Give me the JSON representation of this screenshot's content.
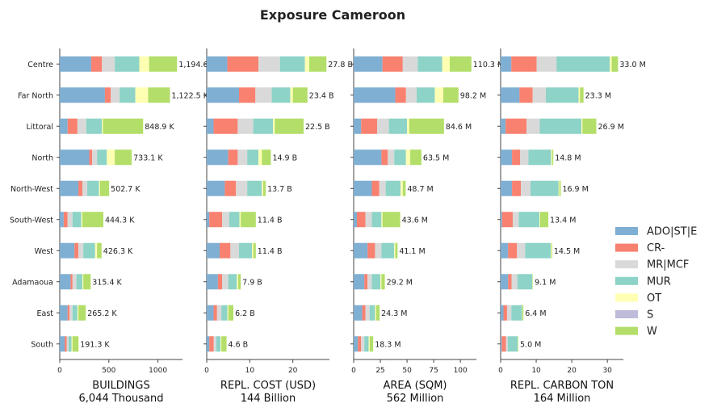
{
  "chart_data": {
    "type": "bar",
    "orientation": "horizontal",
    "stacked": true,
    "title": "Exposure Cameroon",
    "categories": [
      "Centre",
      "Far North",
      "Littoral",
      "North",
      "North-West",
      "South-West",
      "West",
      "Adamaoua",
      "East",
      "South"
    ],
    "legend": [
      {
        "name": "ADO|ST|E",
        "color": "#7fafd3"
      },
      {
        "name": "CR-",
        "color": "#f88170"
      },
      {
        "name": "MR|MCF",
        "color": "#d9d9d9"
      },
      {
        "name": "MUR",
        "color": "#8dd3c7"
      },
      {
        "name": "OT",
        "color": "#ffffb3"
      },
      {
        "name": "S",
        "color": "#bebada"
      },
      {
        "name": "W",
        "color": "#b3de69"
      }
    ],
    "legend_position": "right",
    "grid": false,
    "panels": [
      {
        "xlabel": "BUILDINGS",
        "total": "6,044 Thousand",
        "xlim": [
          0,
          1250
        ],
        "xticks": [
          0,
          500,
          1000
        ],
        "stacks": [
          [
            320,
            110,
            130,
            250,
            100,
            0,
            285
          ],
          [
            460,
            60,
            90,
            160,
            130,
            0,
            222
          ],
          [
            80,
            100,
            90,
            160,
            10,
            0,
            409
          ],
          [
            300,
            30,
            50,
            100,
            80,
            0,
            173
          ],
          [
            190,
            40,
            50,
            120,
            10,
            0,
            93
          ],
          [
            40,
            40,
            50,
            90,
            10,
            0,
            214
          ],
          [
            150,
            40,
            50,
            120,
            20,
            0,
            46
          ],
          [
            110,
            20,
            40,
            60,
            10,
            0,
            75
          ],
          [
            80,
            20,
            30,
            50,
            10,
            0,
            75
          ],
          [
            50,
            20,
            20,
            30,
            10,
            0,
            61
          ]
        ],
        "labels": [
          "1,194.6 K",
          "1,122.5 K",
          "848.9 K",
          "733.1 K",
          "502.7 K",
          "444.3 K",
          "426.3 K",
          "315.4 K",
          "265.2 K",
          "191.3 K"
        ]
      },
      {
        "xlabel": "REPL. COST (USD)",
        "total": "144 Billion",
        "xlim": [
          0,
          28.5
        ],
        "xticks": [
          0,
          10,
          20
        ],
        "stacks": [
          [
            4.8,
            7.2,
            5.0,
            5.8,
            1.0,
            0,
            4.0
          ],
          [
            7.5,
            3.8,
            3.8,
            4.3,
            0.6,
            0,
            3.4
          ],
          [
            1.6,
            5.6,
            3.6,
            4.6,
            0.4,
            0,
            6.7
          ],
          [
            5.0,
            2.2,
            2.2,
            2.6,
            0.8,
            0,
            2.1
          ],
          [
            4.2,
            2.6,
            2.6,
            3.4,
            0.3,
            0,
            0.6
          ],
          [
            0.6,
            3.0,
            1.6,
            2.4,
            0.3,
            0,
            3.5
          ],
          [
            3.0,
            2.5,
            2.0,
            3.0,
            0.3,
            0,
            0.6
          ],
          [
            2.6,
            1.0,
            1.4,
            2.0,
            0.3,
            0,
            0.6
          ],
          [
            1.6,
            0.8,
            1.0,
            1.4,
            0.2,
            0,
            1.2
          ],
          [
            0.6,
            1.0,
            0.6,
            1.0,
            0.2,
            0,
            1.2
          ]
        ],
        "labels": [
          "27.8 B",
          "23.4 B",
          "22.5 B",
          "14.9 B",
          "13.7 B",
          "11.4 B",
          "11.4 B",
          "7.9 B",
          "6.2 B",
          "4.6 B"
        ]
      },
      {
        "xlabel": "AREA (SQM)",
        "total": "562 Million",
        "xlim": [
          0,
          115
        ],
        "xticks": [
          0,
          25,
          50,
          75,
          100
        ],
        "stacks": [
          [
            27,
            19,
            14,
            23,
            7,
            0,
            20.3
          ],
          [
            39,
            10,
            10,
            17,
            8,
            0,
            14.2
          ],
          [
            7,
            15,
            11,
            17,
            2,
            0,
            32.6
          ],
          [
            26,
            6,
            6,
            11,
            4,
            0,
            10.5
          ],
          [
            17,
            7,
            6,
            14,
            2,
            0,
            2.7
          ],
          [
            3,
            8,
            6,
            9,
            1,
            0,
            16.6
          ],
          [
            13,
            7,
            6,
            12,
            1,
            0,
            2.1
          ],
          [
            10,
            3,
            4,
            8,
            1,
            0,
            3.2
          ],
          [
            8,
            3,
            4,
            5,
            1,
            0,
            3.3
          ],
          [
            4,
            3,
            3,
            4,
            1,
            0,
            3.3
          ]
        ],
        "labels": [
          "110.3 M",
          "98.2 M",
          "84.6 M",
          "63.5 M",
          "48.7 M",
          "43.6 M",
          "41.1 M",
          "29.2 M",
          "24.3 M",
          "18.3 M"
        ]
      },
      {
        "xlabel": "REPL. CARBON TON",
        "total": "164 Million",
        "xlim": [
          0,
          34.5
        ],
        "xticks": [
          0,
          10,
          20,
          30
        ],
        "stacks": [
          [
            3.0,
            7.1,
            5.6,
            15.0,
            0.5,
            0,
            1.8
          ],
          [
            5.3,
            3.7,
            3.7,
            9.2,
            0.4,
            0,
            1.0
          ],
          [
            1.4,
            5.9,
            3.7,
            11.7,
            0.3,
            0,
            3.9
          ],
          [
            3.2,
            2.3,
            2.3,
            6.4,
            0.3,
            0,
            0.3
          ],
          [
            3.2,
            2.5,
            2.7,
            7.9,
            0.2,
            0,
            0.4
          ],
          [
            0.4,
            3.0,
            1.7,
            5.8,
            0.2,
            0,
            2.3
          ],
          [
            2.1,
            2.5,
            2.3,
            7.2,
            0.2,
            0,
            0.2
          ],
          [
            2.1,
            1.0,
            1.6,
            4.2,
            0.1,
            0,
            0.1
          ],
          [
            0.8,
            1.0,
            1.2,
            3.0,
            0.1,
            0,
            0.3
          ],
          [
            0.3,
            1.2,
            0.5,
            2.8,
            0.1,
            0,
            0.1
          ]
        ],
        "labels": [
          "33.0 M",
          "23.3 M",
          "26.9 M",
          "14.8 M",
          "16.9 M",
          "13.4 M",
          "14.5 M",
          "9.1 M",
          "6.4 M",
          "5.0 M"
        ]
      }
    ]
  }
}
